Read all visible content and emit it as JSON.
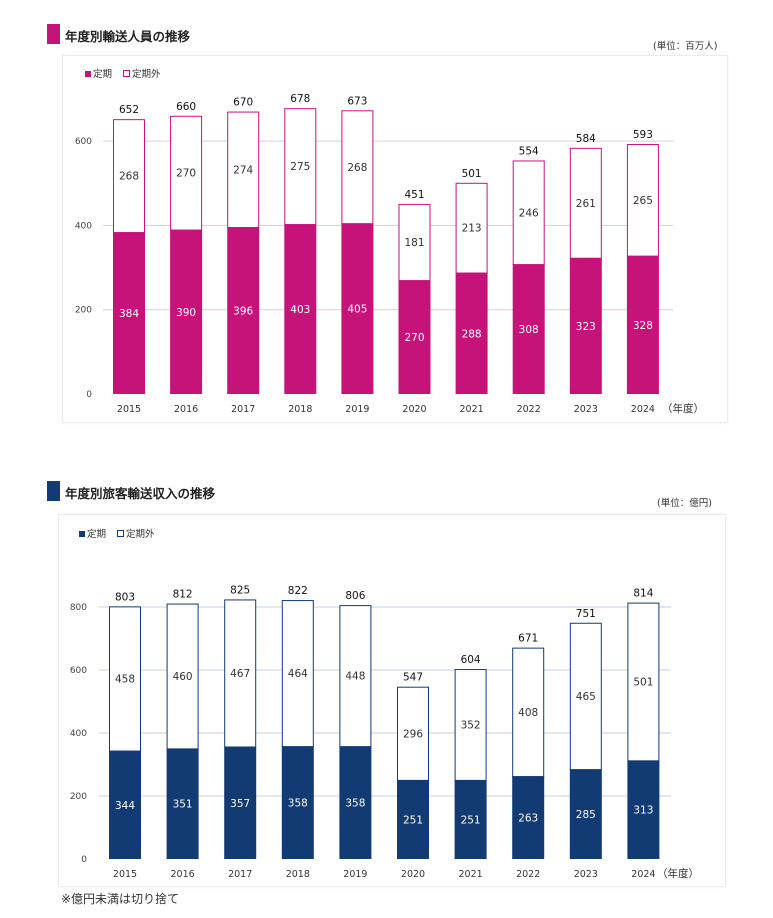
{
  "colors": {
    "magenta": "#c5137a",
    "navy": "#123a73",
    "grid_magenta": "#f1c3dc",
    "grid_navy": "#c7d1e2"
  },
  "section1": {
    "title": "年度別輸送人員の推移",
    "unit": "(単位：百万人)",
    "legend_regular": "定期",
    "legend_nonregular": "定期外"
  },
  "section2": {
    "title": "年度別旅客輸送収入の推移",
    "unit": "(単位：億円)",
    "legend_regular": "定期",
    "legend_nonregular": "定期外"
  },
  "footnote": "※億円未満は切り捨て",
  "chart_data": [
    {
      "type": "bar",
      "stacked": true,
      "title": "年度別輸送人員の推移",
      "unit": "(単位：百万人)",
      "xlabel": "（年度）",
      "ylabel": "",
      "ylim": [
        0,
        650
      ],
      "yticks": [
        0,
        200,
        400,
        600
      ],
      "grid": true,
      "legend_position": "top-left",
      "categories": [
        "2015",
        "2016",
        "2017",
        "2018",
        "2019",
        "2020",
        "2021",
        "2022",
        "2023",
        "2024"
      ],
      "series": [
        {
          "name": "定期",
          "color": "#c5137a",
          "values": [
            384,
            390,
            396,
            403,
            405,
            270,
            288,
            308,
            323,
            328
          ]
        },
        {
          "name": "定期外",
          "color": "#ffffff",
          "values": [
            268,
            270,
            274,
            275,
            268,
            181,
            213,
            246,
            261,
            265
          ]
        }
      ],
      "totals": [
        652,
        660,
        670,
        678,
        673,
        451,
        501,
        554,
        584,
        593
      ]
    },
    {
      "type": "bar",
      "stacked": true,
      "title": "年度別旅客輸送収入の推移",
      "unit": "(単位：億円)",
      "xlabel": "（年度）",
      "ylabel": "",
      "ylim": [
        0,
        800
      ],
      "yticks": [
        0,
        200,
        400,
        600,
        800
      ],
      "grid": true,
      "legend_position": "top-left",
      "categories": [
        "2015",
        "2016",
        "2017",
        "2018",
        "2019",
        "2020",
        "2021",
        "2022",
        "2023",
        "2024"
      ],
      "series": [
        {
          "name": "定期",
          "color": "#123a73",
          "values": [
            344,
            351,
            357,
            358,
            358,
            251,
            251,
            263,
            285,
            313
          ]
        },
        {
          "name": "定期外",
          "color": "#ffffff",
          "values": [
            458,
            460,
            467,
            464,
            448,
            296,
            352,
            408,
            465,
            501
          ]
        }
      ],
      "totals": [
        803,
        812,
        825,
        822,
        806,
        547,
        604,
        671,
        751,
        814
      ]
    }
  ]
}
